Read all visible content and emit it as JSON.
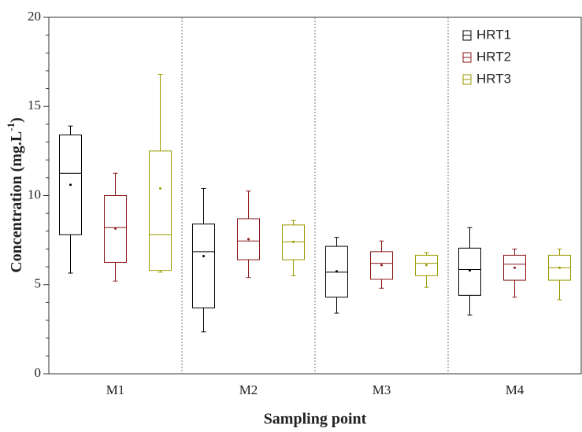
{
  "chart_data": {
    "type": "box",
    "x_label": "Sampling point",
    "y_label": {
      "text": "Concentration (mg.L",
      "sup": "-1",
      "end": ")"
    },
    "categories": [
      "M1",
      "M2",
      "M3",
      "M4"
    ],
    "ylim": [
      0,
      20
    ],
    "yticks": [
      0,
      5,
      10,
      15,
      20
    ],
    "minor_yticks": [
      1,
      2,
      3,
      4,
      6,
      7,
      8,
      9,
      11,
      12,
      13,
      14,
      16,
      17,
      18,
      19
    ],
    "legend": "top-right",
    "series": [
      {
        "name": "HRT1",
        "color": "#000000",
        "min": [
          5.65,
          2.35,
          3.4,
          3.3
        ],
        "q1": [
          7.8,
          3.7,
          4.3,
          4.4
        ],
        "median": [
          11.25,
          6.85,
          5.7,
          5.85
        ],
        "q3": [
          13.4,
          8.4,
          7.15,
          7.05
        ],
        "max": [
          13.9,
          10.4,
          7.65,
          8.2
        ],
        "mean": [
          10.6,
          6.6,
          5.75,
          5.8
        ]
      },
      {
        "name": "HRT2",
        "color": "#8b1a1a",
        "min": [
          5.2,
          5.4,
          4.8,
          4.3
        ],
        "q1": [
          6.25,
          6.4,
          5.3,
          5.25
        ],
        "median": [
          8.2,
          7.45,
          6.2,
          6.15
        ],
        "q3": [
          10.0,
          8.7,
          6.85,
          6.65
        ],
        "max": [
          11.25,
          10.25,
          7.45,
          7.0
        ],
        "mean": [
          8.15,
          7.55,
          6.1,
          5.95
        ]
      },
      {
        "name": "HRT3",
        "color": "#9a9a00",
        "min": [
          5.7,
          5.5,
          4.85,
          4.15
        ],
        "q1": [
          5.8,
          6.4,
          5.5,
          5.25
        ],
        "median": [
          7.8,
          7.4,
          6.2,
          5.95
        ],
        "q3": [
          12.5,
          8.35,
          6.65,
          6.65
        ],
        "max": [
          16.8,
          8.6,
          6.8,
          7.0
        ],
        "mean": [
          10.4,
          7.4,
          6.1,
          5.95
        ]
      }
    ]
  }
}
